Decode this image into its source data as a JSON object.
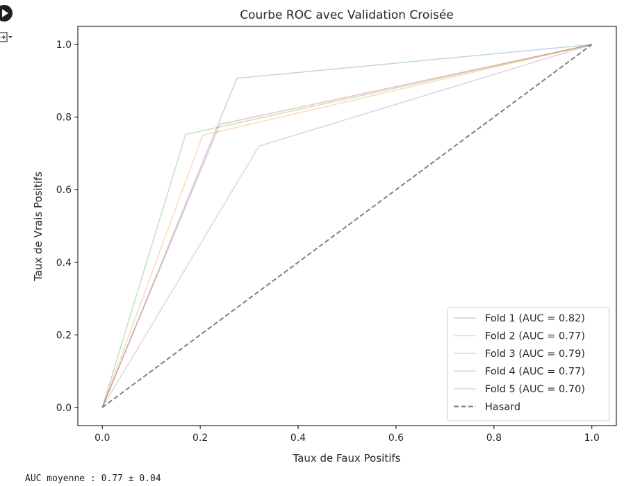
{
  "chart_data": {
    "type": "line",
    "title": "Courbe ROC avec Validation Croisée",
    "xlabel": "Taux de Faux Positifs",
    "ylabel": "Taux de Vrais Positifs",
    "xlim": [
      -0.05,
      1.05
    ],
    "ylim": [
      -0.05,
      1.05
    ],
    "xticks": [
      "0.0",
      "0.2",
      "0.4",
      "0.6",
      "0.8",
      "1.0"
    ],
    "yticks": [
      "0.0",
      "0.2",
      "0.4",
      "0.6",
      "0.8",
      "1.0"
    ],
    "grid": false,
    "legend_position": "lower-right",
    "series": [
      {
        "name": "Fold 1 (AUC = 0.82)",
        "color": "#1f77b4",
        "style": "solid",
        "x": [
          0,
          0.275,
          1
        ],
        "y": [
          0,
          0.907,
          1
        ]
      },
      {
        "name": "Fold 2 (AUC = 0.77)",
        "color": "#ff7f0e",
        "style": "solid",
        "x": [
          0,
          0.205,
          1
        ],
        "y": [
          0,
          0.75,
          1
        ]
      },
      {
        "name": "Fold 3 (AUC = 0.79)",
        "color": "#2ca02c",
        "style": "solid",
        "x": [
          0,
          0.17,
          1
        ],
        "y": [
          0,
          0.752,
          1
        ]
      },
      {
        "name": "Fold 4 (AUC = 0.77)",
        "color": "#d62728",
        "style": "solid",
        "x": [
          0,
          0.24,
          1
        ],
        "y": [
          0,
          0.78,
          1
        ]
      },
      {
        "name": "Fold 5 (AUC = 0.70)",
        "color": "#9467bd",
        "style": "solid",
        "x": [
          0,
          0.32,
          1
        ],
        "y": [
          0,
          0.72,
          1
        ]
      },
      {
        "name": "Hasard",
        "color": "#808080",
        "style": "dashed",
        "x": [
          0,
          1
        ],
        "y": [
          0,
          1
        ]
      }
    ]
  },
  "output": {
    "summary": "AUC moyenne : 0.77 ± 0.04"
  }
}
